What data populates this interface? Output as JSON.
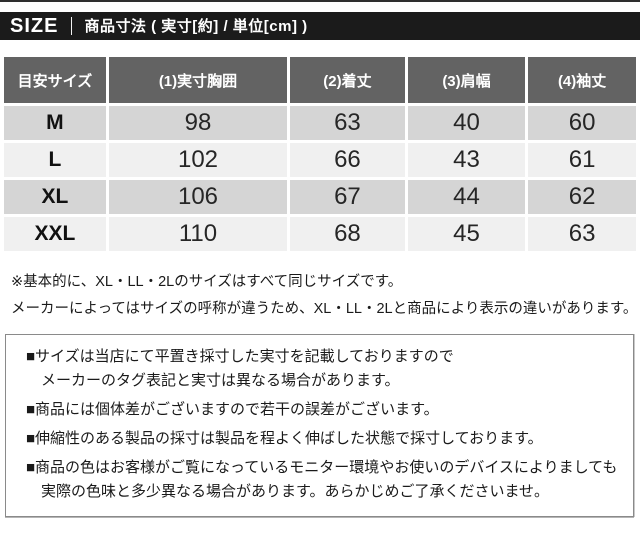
{
  "header_bar": {
    "size_label": "SIZE",
    "title": "商品寸法 ( 実寸[約] / 単位[cm] )",
    "bg_color": "#1b1b1b",
    "text_color": "#ffffff"
  },
  "size_table": {
    "columns": [
      "目安サイズ",
      "(1)実寸胸囲",
      "(2)着丈",
      "(3)肩幅",
      "(4)袖丈"
    ],
    "rows": [
      {
        "label": "M",
        "values": [
          "98",
          "63",
          "40",
          "60"
        ]
      },
      {
        "label": "L",
        "values": [
          "102",
          "66",
          "43",
          "61"
        ]
      },
      {
        "label": "XL",
        "values": [
          "106",
          "67",
          "44",
          "62"
        ]
      },
      {
        "label": "XXL",
        "values": [
          "110",
          "68",
          "45",
          "63"
        ]
      }
    ],
    "header_bg": "#636363",
    "row_bg_odd": "#d5d5d5",
    "row_bg_even": "#f0f0f0"
  },
  "size_note": {
    "line1": "※基本的に、XL・LL・2Lのサイズはすべて同じサイズです。",
    "line2": "メーカーによってはサイズの呼称が違うため、XL・LL・2Lと商品により表示の違いがあります。"
  },
  "info_box": {
    "item1_line1": "■サイズは当店にて平置き採寸した実寸を記載しておりますので",
    "item1_line2": "　メーカーのタグ表記と実寸は異なる場合があります。",
    "item2": "■商品には個体差がございますので若干の誤差がございます。",
    "item3": "■伸縮性のある製品の採寸は製品を程よく伸ばした状態で採寸しております。",
    "item4_line1": "■商品の色はお客様がご覧になっているモニター環境やお使いのデバイスによりましても",
    "item4_line2": "　実際の色味と多少異なる場合があります。あらかじめご了承くださいませ。"
  }
}
